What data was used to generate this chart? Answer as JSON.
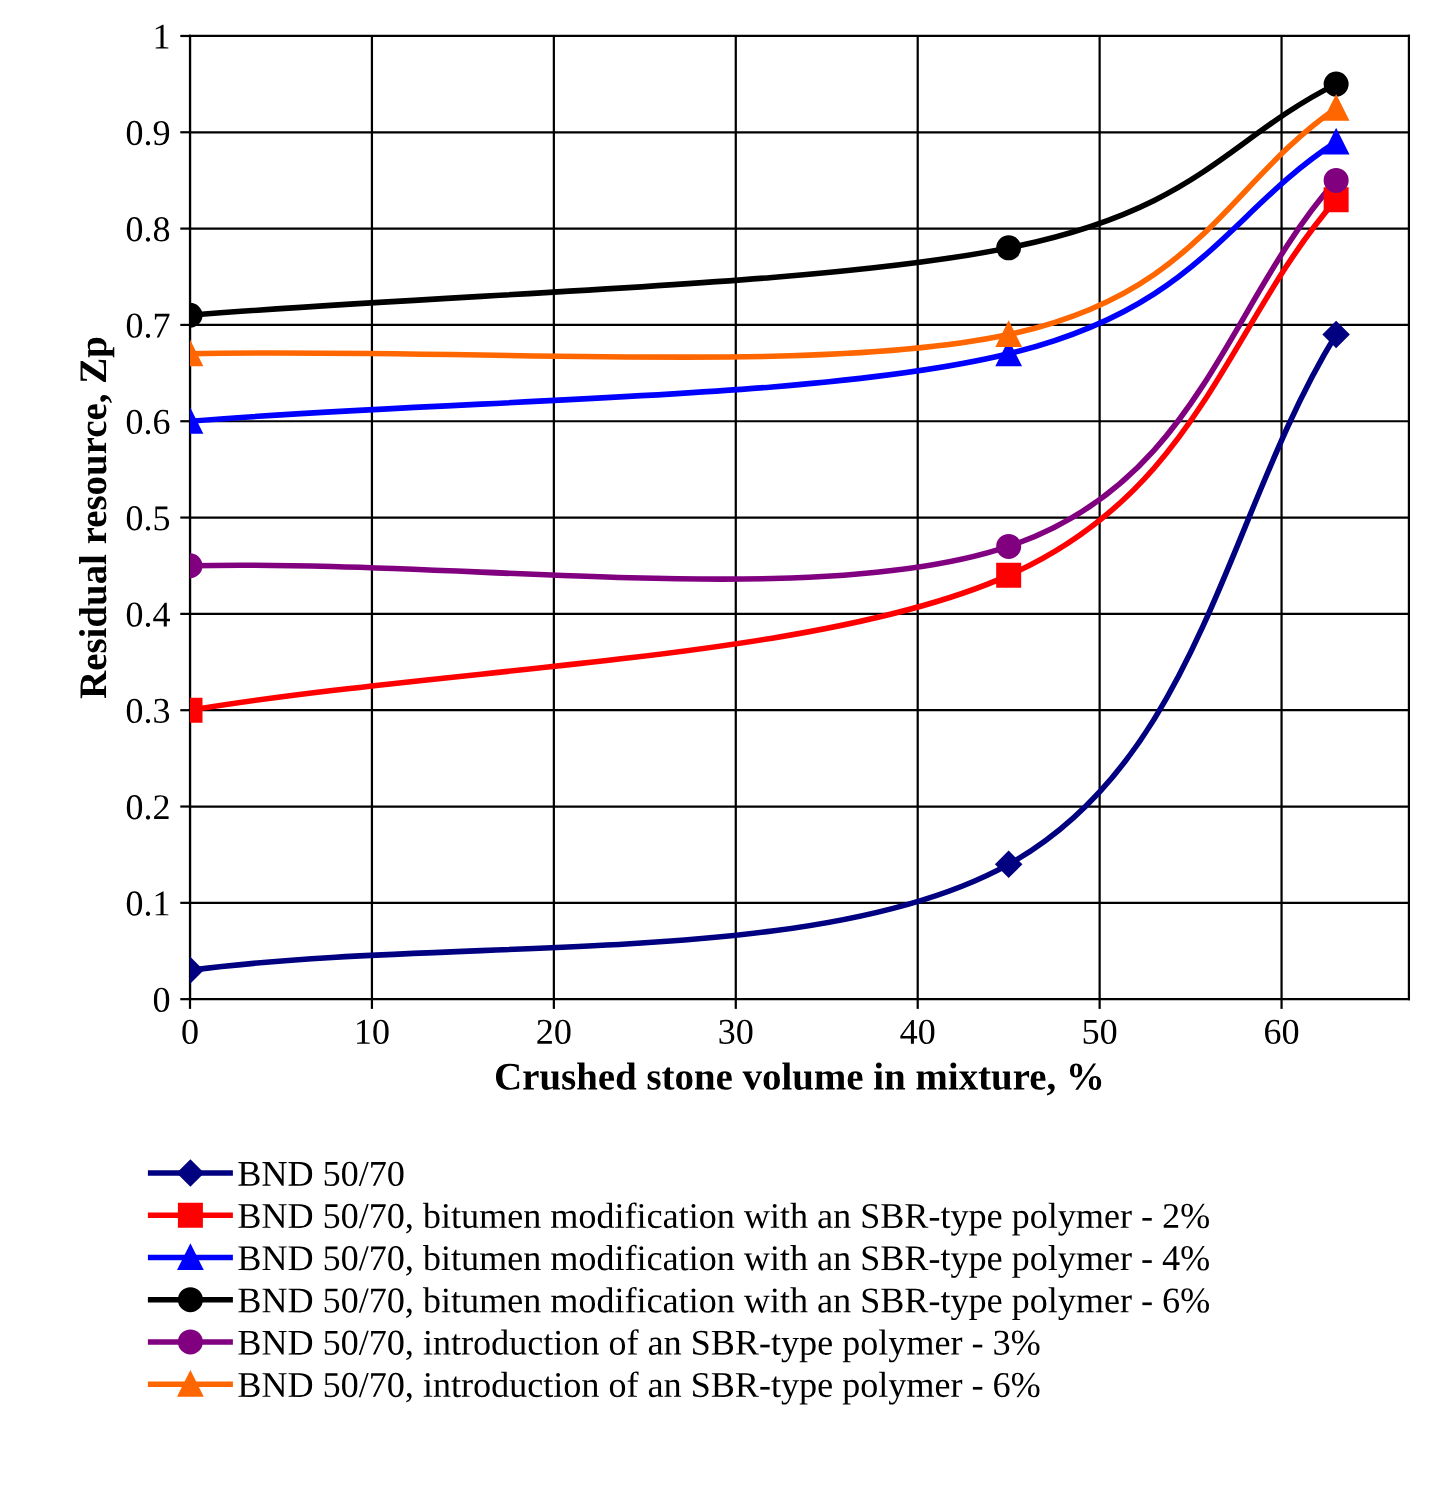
{
  "chart_data": {
    "type": "line",
    "xlabel": "Crushed stone volume in mixture, %",
    "ylabel": "Residual resource, Zp",
    "xlim": [
      0,
      67
    ],
    "xticks": [
      0,
      10,
      20,
      30,
      40,
      50,
      60
    ],
    "ylim": [
      0,
      1
    ],
    "yticks": [
      {
        "value": 0,
        "label": "0"
      },
      0.1,
      0.2,
      0.3,
      0.4,
      0.5,
      0.6,
      0.7,
      0.8,
      0.9,
      {
        "value": 1,
        "label": "1"
      }
    ],
    "grid": true,
    "legend": "bottom",
    "line_style": "solid",
    "x": [
      0,
      45,
      63
    ],
    "series": [
      {
        "name": "BND 50/70",
        "color": "#000080",
        "marker": "diamond",
        "values": [
          0.03,
          0.14,
          0.69
        ]
      },
      {
        "name": "BND 50/70, bitumen modification with an SBR-type polymer - 2%",
        "color": "#ff0000",
        "marker": "square",
        "values": [
          0.3,
          0.44,
          0.83
        ]
      },
      {
        "name": "BND 50/70, bitumen modification with an SBR-type polymer - 4%",
        "color": "#0000ff",
        "marker": "triangle",
        "values": [
          0.6,
          0.67,
          0.89
        ]
      },
      {
        "name": "BND 50/70, bitumen modification with an SBR-type polymer - 6%",
        "color": "#000000",
        "marker": "circle",
        "values": [
          0.71,
          0.78,
          0.95
        ]
      },
      {
        "name": "BND 50/70, introduction of an SBR-type polymer - 3%",
        "color": "#800080",
        "marker": "circle",
        "values": [
          0.45,
          0.47,
          0.85
        ]
      },
      {
        "name": "BND 50/70, introduction of an SBR-type polymer - 6%",
        "color": "#ff6600",
        "marker": "triangle",
        "values": [
          0.67,
          0.69,
          0.925
        ]
      }
    ]
  }
}
